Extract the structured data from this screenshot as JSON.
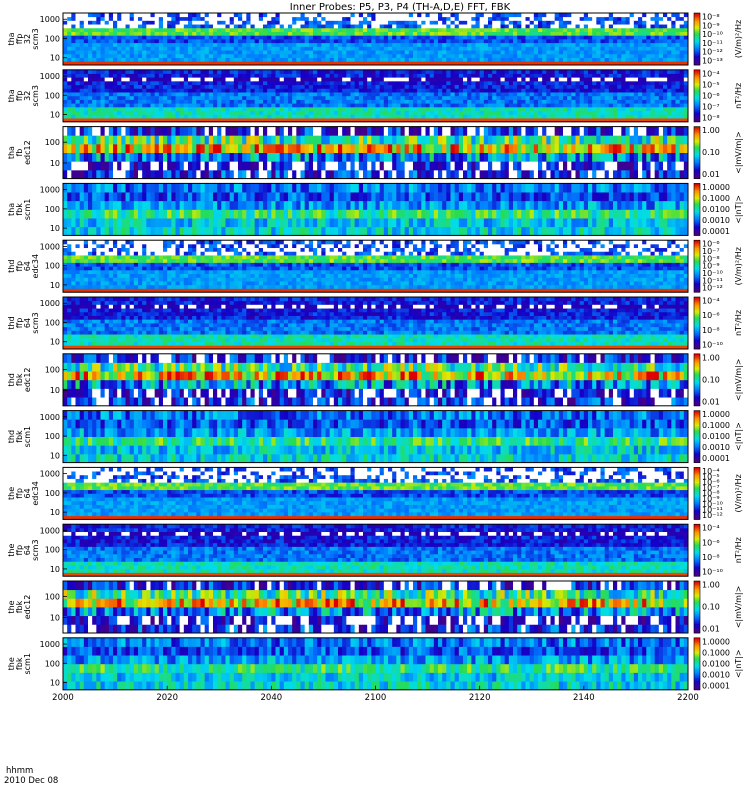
{
  "title": "Inner Probes: P5, P3, P4 (TH-A,D,E) FFT, FBK",
  "date_label": "2010 Dec 08",
  "time_label": "hhmm",
  "chart_data": {
    "type": "heatmap",
    "x_ticks": [
      "2000",
      "2020",
      "2040",
      "2100",
      "2120",
      "2140",
      "2200"
    ],
    "xlim": [
      "20:00",
      "22:00"
    ],
    "panels": [
      {
        "label": [
          "tha",
          "ffp",
          "32",
          "scm3"
        ],
        "kind": "ffp_e",
        "y_ticks": [
          "1000",
          "100",
          "10"
        ],
        "cbar_ticks": [
          "10⁻⁸",
          "10⁻⁹",
          "10⁻¹⁰",
          "10⁻¹¹",
          "10⁻¹²",
          "10⁻¹³"
        ],
        "cbar_label": "(V/m)²/Hz"
      },
      {
        "label": [
          "tha",
          "ffp",
          "32",
          "scm3"
        ],
        "kind": "ffp_b",
        "y_ticks": [
          "1000",
          "100",
          "10"
        ],
        "cbar_ticks": [
          "10⁻⁴",
          "10⁻⁵",
          "10⁻⁶",
          "10⁻⁷",
          "10⁻⁸"
        ],
        "cbar_label": "nT²/Hz"
      },
      {
        "label": [
          "tha",
          "fb",
          "edc12"
        ],
        "kind": "fb_e",
        "y_ticks": [
          "100",
          "10"
        ],
        "cbar_ticks": [
          "1.00",
          "0.10",
          "0.01"
        ],
        "cbar_label": "<|mV/m|>"
      },
      {
        "label": [
          "tha",
          "fbk",
          "scm1"
        ],
        "kind": "fb_b",
        "y_ticks": [
          "1000",
          "100",
          "10"
        ],
        "cbar_ticks": [
          "1.0000",
          "0.1000",
          "0.0100",
          "0.0010",
          "0.0001"
        ],
        "cbar_label": "<|nT|>"
      },
      {
        "label": [
          "thd",
          "ffp",
          "64",
          "edc34"
        ],
        "kind": "ffp_e",
        "y_ticks": [
          "1000",
          "100",
          "10"
        ],
        "cbar_ticks": [
          "10⁻⁶",
          "10⁻⁷",
          "10⁻⁸",
          "10⁻⁹",
          "10⁻¹⁰",
          "10⁻¹¹",
          "10⁻¹²"
        ],
        "cbar_label": "(V/m)²/Hz"
      },
      {
        "label": [
          "thd",
          "ffp",
          "64",
          "scm3"
        ],
        "kind": "ffp_b",
        "y_ticks": [
          "1000",
          "100",
          "10"
        ],
        "cbar_ticks": [
          "10⁻⁴",
          "10⁻⁶",
          "10⁻⁸",
          "10⁻¹⁰"
        ],
        "cbar_label": "nT²/Hz"
      },
      {
        "label": [
          "thd",
          "fbk",
          "edc12"
        ],
        "kind": "fb_e",
        "y_ticks": [
          "100",
          "10"
        ],
        "cbar_ticks": [
          "1.00",
          "0.10",
          "0.01"
        ],
        "cbar_label": "<|mV/m|>"
      },
      {
        "label": [
          "thd",
          "fbk",
          "scm1"
        ],
        "kind": "fb_b",
        "y_ticks": [
          "1000",
          "100",
          "10"
        ],
        "cbar_ticks": [
          "1.0000",
          "0.1000",
          "0.0100",
          "0.0010",
          "0.0001"
        ],
        "cbar_label": "<|nT|>"
      },
      {
        "label": [
          "the",
          "ffp",
          "64",
          "edc34"
        ],
        "kind": "ffp_e",
        "y_ticks": [
          "1000",
          "100",
          "10"
        ],
        "cbar_ticks": [
          "10⁻⁴",
          "10⁻⁵",
          "10⁻⁶",
          "10⁻⁷",
          "10⁻⁸",
          "10⁻⁹",
          "10⁻¹⁰",
          "10⁻¹¹",
          "10⁻¹²"
        ],
        "cbar_label": "(V/m)²/Hz"
      },
      {
        "label": [
          "the",
          "ffp",
          "64",
          "scm3"
        ],
        "kind": "ffp_b",
        "y_ticks": [
          "1000",
          "100",
          "10"
        ],
        "cbar_ticks": [
          "10⁻⁴",
          "10⁻⁶",
          "10⁻⁸",
          "10⁻¹⁰"
        ],
        "cbar_label": "nT²/Hz"
      },
      {
        "label": [
          "the",
          "fbk",
          "edc12"
        ],
        "kind": "fb_e",
        "y_ticks": [
          "100",
          "10"
        ],
        "cbar_ticks": [
          "1.00",
          "0.10",
          "0.01"
        ],
        "cbar_label": "<|mV/m|>"
      },
      {
        "label": [
          "the",
          "fbk",
          "scm1"
        ],
        "kind": "fb_b",
        "y_ticks": [
          "1000",
          "100",
          "10"
        ],
        "cbar_ticks": [
          "1.0000",
          "0.1000",
          "0.0100",
          "0.0010",
          "0.0001"
        ],
        "cbar_label": "<|nT|>"
      }
    ]
  }
}
